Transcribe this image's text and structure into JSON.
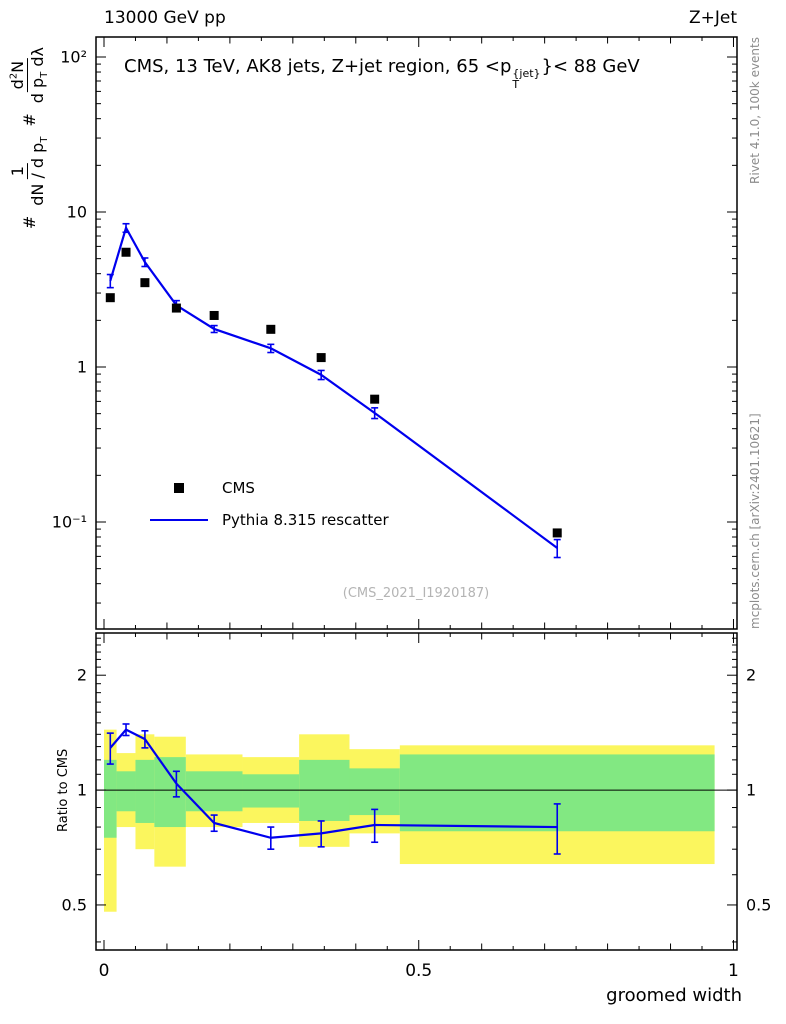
{
  "header": {
    "left": "13000 GeV pp",
    "right": "Z+Jet"
  },
  "side_notes": {
    "top_right": "Rivet 4.1.0,  100k events",
    "bottom_right": "mcplots.cern.ch [arXiv:2401.10621]"
  },
  "main": {
    "title": {
      "prefix": "CMS, 13 TeV, AK8 jets, Z+jet region, 65 <p",
      "sup": "{jet}",
      "sub": "T",
      "suffix": "}< 88 GeV"
    },
    "ylabel": {
      "hash1": "#",
      "f1_num": "1",
      "f1_den_base": "dN / d p",
      "f1_den_sub": "T",
      "hash2": "#",
      "f2_num_base": "d",
      "f2_num_sup": "2",
      "f2_num_tail": "N",
      "f2_den_base": "d p",
      "f2_den_sub": "T",
      "f2_den_tail": " dλ"
    },
    "legend": [
      {
        "marker": "square",
        "label": "CMS"
      },
      {
        "marker": "line",
        "label": "Pythia 8.315 rescatter"
      }
    ],
    "watermark": "(CMS_2021_I1920187)"
  },
  "ratio": {
    "ylabel": "Ratio to CMS"
  },
  "xaxis": {
    "title": "groomed width"
  },
  "colors": {
    "pythia_blue": "#0000ee",
    "cms_black": "#000000",
    "band_yellow": "#fbf65e",
    "band_green": "#82e882",
    "frame": "#000000",
    "watermark_gray": "#b4b4b4",
    "note_gray": "#8c8c8c"
  },
  "chart_data": [
    {
      "type": "line",
      "panel": "main",
      "title": "CMS, 13 TeV, AK8 jets, Z+jet region, 65 <p_T^{jet}< 88 GeV",
      "xlabel": "groomed width",
      "ylabel": "# 1/(dN/dp_T) # d2N/(dp_T dlambda)",
      "x": [
        0.01,
        0.035,
        0.065,
        0.115,
        0.175,
        0.265,
        0.345,
        0.43,
        0.72
      ],
      "series": [
        {
          "name": "CMS",
          "style": "black-squares",
          "y": [
            2.8,
            5.5,
            3.5,
            2.4,
            2.15,
            1.75,
            1.15,
            0.62,
            0.085
          ],
          "yerr": [
            0.12,
            0.18,
            0.12,
            0.09,
            0.08,
            0.06,
            0.05,
            0.025,
            0.004
          ]
        },
        {
          "name": "Pythia 8.315 rescatter",
          "style": "blue-line",
          "y": [
            3.6,
            7.9,
            4.75,
            2.5,
            1.76,
            1.32,
            0.89,
            0.505,
            0.068
          ],
          "yerr": [
            0.35,
            0.5,
            0.3,
            0.18,
            0.09,
            0.08,
            0.06,
            0.04,
            0.009
          ]
        }
      ],
      "xlim": [
        -0.0127,
        1.0056
      ],
      "ylim": [
        0.0204,
        134.6
      ],
      "ylog": true,
      "grid": false,
      "y_ticks": [
        {
          "v": 100,
          "label": "10²"
        },
        {
          "v": 10,
          "label": "10"
        },
        {
          "v": 1,
          "label": "1"
        },
        {
          "v": 0.1,
          "label": "10⁻¹"
        }
      ],
      "x_ticks": [
        {
          "v": 0,
          "label": "0"
        },
        {
          "v": 0.5,
          "label": "0.5"
        },
        {
          "v": 1,
          "label": "1"
        }
      ],
      "legend_position": "center-left"
    },
    {
      "type": "ratio",
      "panel": "ratio",
      "ylabel": "Ratio to CMS",
      "x": [
        0.01,
        0.035,
        0.065,
        0.115,
        0.175,
        0.265,
        0.345,
        0.43,
        0.72
      ],
      "ratio": [
        1.29,
        1.44,
        1.36,
        1.04,
        0.82,
        0.75,
        0.77,
        0.81,
        0.8
      ],
      "ratio_err": [
        0.12,
        0.05,
        0.07,
        0.08,
        0.04,
        0.05,
        0.06,
        0.08,
        0.12
      ],
      "bin_edges": [
        0.0,
        0.02,
        0.05,
        0.08,
        0.13,
        0.22,
        0.31,
        0.39,
        0.47,
        0.97
      ],
      "band_yellow_lo": [
        0.48,
        0.8,
        0.7,
        0.63,
        0.8,
        0.82,
        0.71,
        0.77,
        0.64
      ],
      "band_yellow_hi": [
        1.44,
        1.25,
        1.4,
        1.38,
        1.24,
        1.22,
        1.4,
        1.28,
        1.31
      ],
      "band_green_lo": [
        0.75,
        0.88,
        0.82,
        0.8,
        0.88,
        0.9,
        0.83,
        0.86,
        0.78
      ],
      "band_green_hi": [
        1.2,
        1.12,
        1.2,
        1.22,
        1.12,
        1.1,
        1.2,
        1.14,
        1.24
      ],
      "ref_line": 1,
      "ylim": [
        0.381,
        2.58
      ],
      "ylog": true,
      "y_ticks": [
        {
          "v": 0.5,
          "label": "0.5"
        },
        {
          "v": 1,
          "label": "1"
        },
        {
          "v": 2,
          "label": "2"
        }
      ]
    }
  ]
}
